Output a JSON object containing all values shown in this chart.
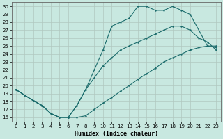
{
  "xlabel": "Humidex (Indice chaleur)",
  "bg_color": "#c8e8e0",
  "grid_color": "#b0c8c0",
  "line_color": "#1a6b6b",
  "xlim": [
    -0.5,
    23.5
  ],
  "ylim": [
    15.5,
    30.5
  ],
  "yticks": [
    16,
    17,
    18,
    19,
    20,
    21,
    22,
    23,
    24,
    25,
    26,
    27,
    28,
    29,
    30
  ],
  "xticks": [
    0,
    1,
    2,
    3,
    4,
    5,
    6,
    7,
    8,
    9,
    10,
    11,
    12,
    13,
    14,
    15,
    16,
    17,
    18,
    19,
    20,
    21,
    22,
    23
  ],
  "line1_x": [
    0,
    1,
    2,
    3,
    4,
    5,
    6,
    7,
    8,
    9,
    10,
    11,
    12,
    13,
    14,
    15,
    16,
    17,
    18,
    19,
    20,
    22,
    23
  ],
  "line1_y": [
    19.5,
    18.8,
    18.1,
    17.5,
    16.5,
    16.0,
    16.0,
    17.5,
    19.5,
    22.0,
    24.5,
    27.5,
    28.0,
    28.5,
    30.0,
    30.0,
    29.5,
    29.5,
    30.0,
    29.5,
    29.0,
    25.0,
    24.8
  ],
  "line2_x": [
    0,
    1,
    2,
    3,
    4,
    5,
    6,
    7,
    8,
    9,
    10,
    11,
    12,
    13,
    14,
    15,
    16,
    17,
    18,
    19,
    20,
    21,
    22,
    23
  ],
  "line2_y": [
    19.5,
    18.8,
    18.1,
    17.5,
    16.5,
    16.0,
    16.0,
    17.5,
    19.5,
    21.0,
    22.5,
    23.5,
    24.5,
    25.0,
    25.5,
    26.0,
    26.5,
    27.0,
    27.5,
    27.5,
    27.0,
    26.0,
    25.5,
    24.5
  ],
  "line3_x": [
    0,
    1,
    2,
    3,
    4,
    5,
    6,
    7,
    8,
    9,
    10,
    11,
    12,
    13,
    14,
    15,
    16,
    17,
    18,
    19,
    20,
    21,
    22,
    23
  ],
  "line3_y": [
    19.5,
    18.8,
    18.1,
    17.5,
    16.5,
    16.0,
    16.0,
    16.0,
    16.2,
    17.0,
    17.8,
    18.5,
    19.3,
    20.0,
    20.8,
    21.5,
    22.2,
    23.0,
    23.5,
    24.0,
    24.5,
    24.8,
    25.0,
    25.0
  ]
}
